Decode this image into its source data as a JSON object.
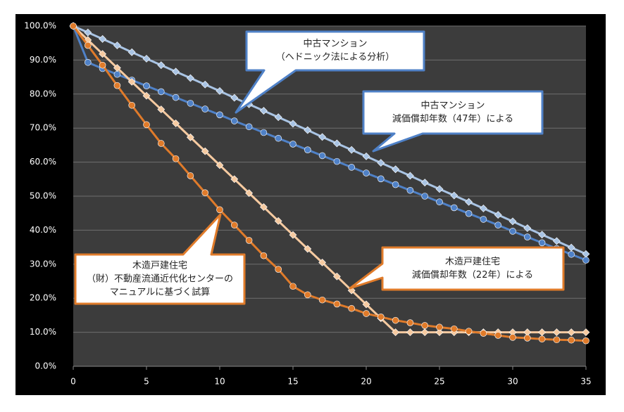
{
  "chart_data": {
    "type": "line",
    "x": [
      0,
      1,
      2,
      3,
      4,
      5,
      6,
      7,
      8,
      9,
      10,
      11,
      12,
      13,
      14,
      15,
      16,
      17,
      18,
      19,
      20,
      21,
      22,
      23,
      24,
      25,
      26,
      27,
      28,
      29,
      30,
      31,
      32,
      33,
      34,
      35
    ],
    "series": [
      {
        "color": "#a9c4e4",
        "marker": "diamond",
        "values": [
          100,
          98.1,
          96.2,
          94.3,
          92.3,
          90.4,
          88.5,
          86.6,
          84.7,
          82.8,
          80.9,
          78.9,
          77.0,
          75.1,
          73.2,
          71.3,
          69.4,
          67.4,
          65.5,
          63.6,
          61.7,
          59.8,
          57.9,
          56.0,
          54.0,
          52.1,
          50.2,
          48.3,
          46.4,
          44.5,
          42.6,
          40.6,
          38.7,
          36.8,
          34.9,
          33.0
        ]
      },
      {
        "color": "#4f81c7",
        "marker": "circle",
        "values": [
          100,
          89.3,
          87.5,
          85.8,
          84.1,
          82.4,
          80.7,
          79.0,
          77.3,
          75.6,
          73.9,
          72.1,
          70.4,
          68.7,
          67.0,
          65.3,
          63.6,
          61.9,
          60.2,
          58.5,
          56.8,
          55.1,
          53.4,
          51.7,
          50.0,
          48.3,
          46.6,
          44.9,
          43.2,
          41.5,
          39.7,
          38.0,
          36.3,
          34.6,
          32.9,
          31.2
        ]
      },
      {
        "color": "#f6caa0",
        "marker": "diamond",
        "values": [
          100,
          95.9,
          91.8,
          87.7,
          83.6,
          79.5,
          75.5,
          71.4,
          67.3,
          63.2,
          59.1,
          55.0,
          50.9,
          46.8,
          42.7,
          38.6,
          34.5,
          30.5,
          26.4,
          22.3,
          18.2,
          14.1,
          10,
          10,
          10,
          10,
          10,
          10,
          10,
          10,
          10,
          10,
          10,
          10,
          10,
          10
        ]
      },
      {
        "color": "#e07b2a",
        "marker": "circle",
        "values": [
          100,
          94.3,
          88.5,
          82.5,
          76.7,
          71,
          65.5,
          61,
          56,
          51,
          46,
          41.5,
          37,
          32.5,
          28.5,
          23.5,
          21,
          19.5,
          18.3,
          17,
          15.5,
          14.5,
          13.5,
          12.8,
          12,
          11.5,
          11,
          10.3,
          9.7,
          9.1,
          8.5,
          8.3,
          8,
          7.8,
          7.7,
          7.5
        ]
      }
    ],
    "xlim": [
      0,
      35
    ],
    "xticks": [
      0,
      5,
      10,
      15,
      20,
      25,
      30,
      35
    ],
    "ylim": [
      0,
      100
    ],
    "yticks": [
      {
        "value": 0,
        "label": "0.0%"
      },
      {
        "value": 10,
        "label": "10.0%"
      },
      {
        "value": 20,
        "label": "20.0%"
      },
      {
        "value": 30,
        "label": "30.0%"
      },
      {
        "value": 40,
        "label": "40.0%"
      },
      {
        "value": 50,
        "label": "50.0%"
      },
      {
        "value": 60,
        "label": "60.0%"
      },
      {
        "value": 70,
        "label": "70.0%"
      },
      {
        "value": 80,
        "label": "80.0%"
      },
      {
        "value": 90,
        "label": "90.0%"
      },
      {
        "value": 100,
        "label": "100.0%"
      }
    ],
    "grid": true,
    "annotations": [
      {
        "color": "#4f81c7",
        "lines": [
          "中古マンション",
          "（ヘドニック法による分析）"
        ]
      },
      {
        "color": "#4f81c7",
        "lines": [
          "中古マンション",
          "減価償却年数（47年）による"
        ]
      },
      {
        "color": "#e07b2a",
        "lines": [
          "木造戸建住宅",
          "（財）不動産流通近代化センターの",
          "マニュアルに基づく試算"
        ]
      },
      {
        "color": "#e07b2a",
        "lines": [
          "木造戸建住宅",
          "減価償却年数（22年）による"
        ]
      }
    ]
  }
}
